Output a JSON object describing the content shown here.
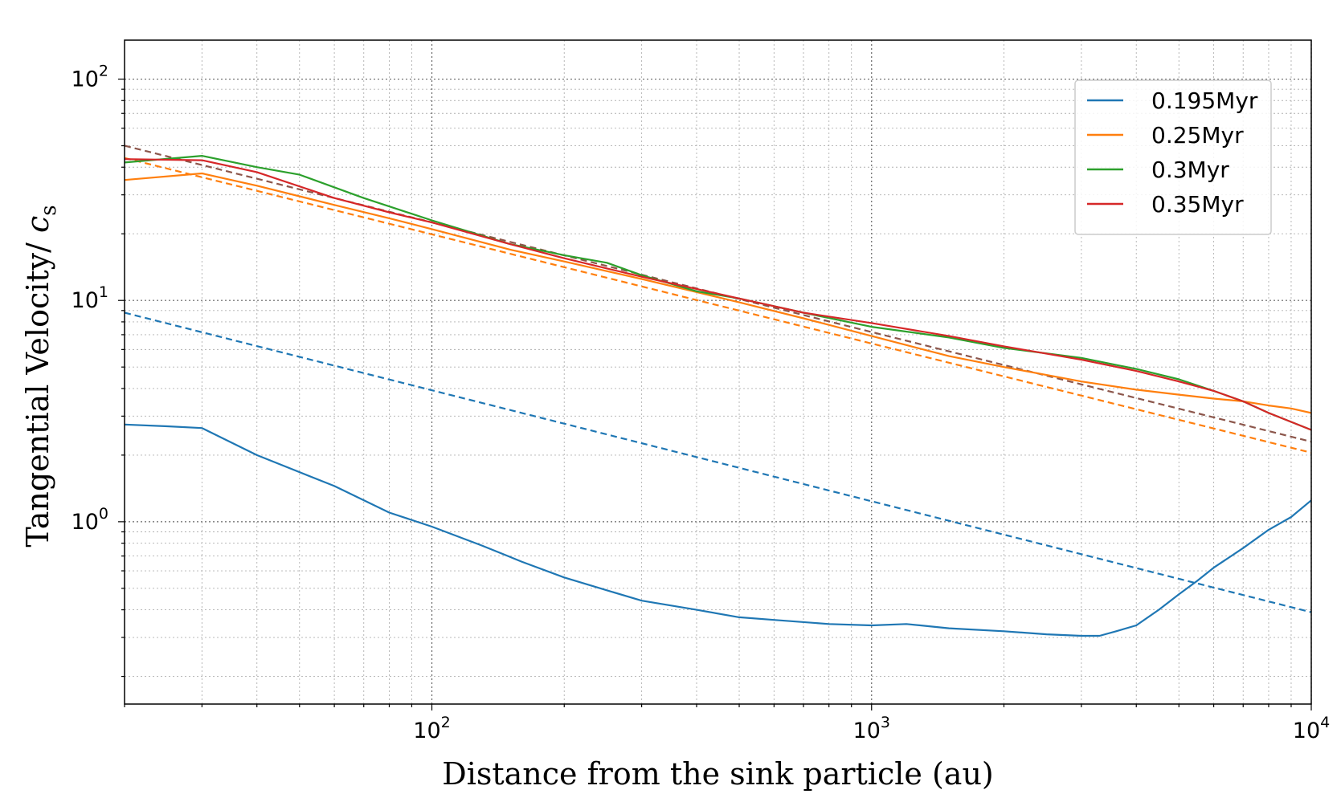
{
  "chart_data": {
    "type": "line",
    "xlabel": "Distance from the sink particle (au)",
    "ylabel_main": "Tangential Velocity/ ",
    "ylabel_symbol": "c",
    "ylabel_sub": "s",
    "xscale": "log",
    "yscale": "log",
    "xlim": [
      20,
      10000
    ],
    "ylim": [
      0.15,
      150
    ],
    "x_ticks": [
      {
        "base": "10",
        "exp": "2",
        "value": 100
      },
      {
        "base": "10",
        "exp": "3",
        "value": 1000
      },
      {
        "base": "10",
        "exp": "4",
        "value": 10000
      }
    ],
    "y_ticks": [
      {
        "base": "10",
        "exp": "0",
        "value": 1
      },
      {
        "base": "10",
        "exp": "1",
        "value": 10
      },
      {
        "base": "10",
        "exp": "2",
        "value": 100
      }
    ],
    "grid": true,
    "legend_position": "top-right",
    "series": [
      {
        "name": "0.195Myr",
        "color": "#1f77b4",
        "x": [
          20,
          25,
          30,
          40,
          60,
          80,
          100,
          130,
          160,
          200,
          250,
          300,
          400,
          500,
          600,
          800,
          1000,
          1200,
          1500,
          2000,
          2500,
          3000,
          3300,
          3600,
          4000,
          4500,
          5000,
          5500,
          6000,
          7000,
          8000,
          9000,
          10000
        ],
        "y": [
          2.75,
          2.7,
          2.65,
          2.0,
          1.45,
          1.1,
          0.95,
          0.78,
          0.66,
          0.56,
          0.49,
          0.44,
          0.4,
          0.37,
          0.36,
          0.345,
          0.34,
          0.345,
          0.33,
          0.32,
          0.31,
          0.305,
          0.305,
          0.32,
          0.34,
          0.4,
          0.47,
          0.54,
          0.62,
          0.76,
          0.92,
          1.05,
          1.25
        ]
      },
      {
        "name": "0.25Myr",
        "color": "#ff7f0e",
        "x": [
          20,
          30,
          40,
          60,
          80,
          100,
          150,
          200,
          300,
          500,
          700,
          1000,
          1500,
          2000,
          3000,
          4000,
          5000,
          6000,
          7000,
          8000,
          9000,
          10000
        ],
        "y": [
          35,
          37.5,
          33,
          27,
          23.5,
          21,
          17,
          15,
          12.5,
          9.8,
          8.3,
          6.9,
          5.6,
          5.0,
          4.3,
          3.95,
          3.75,
          3.6,
          3.5,
          3.35,
          3.25,
          3.1
        ]
      },
      {
        "name": "0.3Myr",
        "color": "#2ca02c",
        "x": [
          20,
          30,
          40,
          50,
          70,
          100,
          150,
          200,
          250,
          300,
          400,
          500,
          700,
          1000,
          1500,
          2000,
          3000,
          4000,
          5000,
          6000,
          7000,
          8000,
          10000
        ],
        "y": [
          42,
          45,
          40,
          37,
          29,
          23,
          18,
          16,
          14.8,
          13,
          11,
          10.2,
          8.8,
          7.6,
          6.8,
          6.1,
          5.5,
          4.9,
          4.4,
          3.9,
          3.5,
          3.1,
          2.6
        ]
      },
      {
        "name": "0.35Myr",
        "color": "#d62728",
        "x": [
          20,
          30,
          40,
          60,
          80,
          100,
          150,
          200,
          300,
          500,
          700,
          1000,
          1500,
          2000,
          3000,
          4000,
          5000,
          6000,
          7000,
          8000,
          10000
        ],
        "y": [
          43.5,
          43,
          38,
          29,
          25,
          22.5,
          18,
          15.5,
          12.8,
          10.2,
          8.8,
          7.9,
          6.9,
          6.2,
          5.4,
          4.8,
          4.3,
          3.9,
          3.5,
          3.1,
          2.6
        ]
      }
    ],
    "fit_lines": [
      {
        "color": "#1f77b4",
        "x": [
          20,
          10000
        ],
        "y": [
          8.8,
          0.39
        ]
      },
      {
        "color": "#ff7f0e",
        "x": [
          20,
          10000
        ],
        "y": [
          44,
          2.05
        ]
      },
      {
        "color": "#8c564b",
        "x": [
          20,
          10000
        ],
        "y": [
          50,
          2.3
        ]
      }
    ]
  }
}
